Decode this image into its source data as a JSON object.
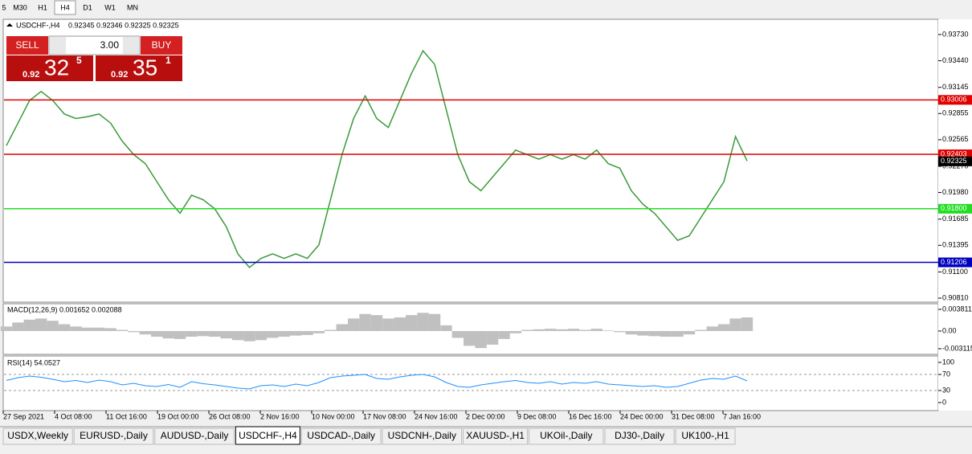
{
  "toolbar": {
    "timeframes": [
      "5",
      "M30",
      "H1",
      "H4",
      "D1",
      "W1",
      "MN"
    ],
    "active": 3
  },
  "chart": {
    "symbol": "USDCHF-,H4",
    "quote": "0.92345 0.92346 0.92325 0.92325",
    "trade": {
      "sell": "SELL",
      "buy": "BUY",
      "volume": "3.00",
      "bid": {
        "big": "0.92",
        "pips": "32",
        "frac": "5"
      },
      "ask": {
        "big": "0.92",
        "pips": "35",
        "frac": "1"
      }
    },
    "price_axis": [
      {
        "value": 0.9373,
        "label": "0.93730"
      },
      {
        "value": 0.9344,
        "label": "0.93440"
      },
      {
        "value": 0.93145,
        "label": "0.93145"
      },
      {
        "value": 0.92855,
        "label": "0.92855"
      },
      {
        "value": 0.92565,
        "label": "0.92565"
      },
      {
        "value": 0.9227,
        "label": "0.92270"
      },
      {
        "value": 0.9198,
        "label": "0.91980"
      },
      {
        "value": 0.91685,
        "label": "0.91685"
      },
      {
        "value": 0.91395,
        "label": "0.91395"
      },
      {
        "value": 0.911,
        "label": "0.91100"
      },
      {
        "value": 0.9081,
        "label": "0.90810"
      }
    ],
    "levels": [
      {
        "value": 0.93006,
        "label": "0.93006",
        "color": "#e00000"
      },
      {
        "value": 0.92403,
        "label": "0.92403",
        "color": "#e00000"
      },
      {
        "value": 0.918,
        "label": "0.91800",
        "color": "#22dd22"
      },
      {
        "value": 0.91206,
        "label": "0.91206",
        "color": "#0000c0"
      }
    ],
    "current": {
      "value": 0.92325,
      "label": "0.92325"
    },
    "price_color": "#3a9a3a",
    "price": [
      0.925,
      0.9275,
      0.93,
      0.931,
      0.93,
      0.9285,
      0.928,
      0.9282,
      0.9285,
      0.9275,
      0.9255,
      0.924,
      0.923,
      0.921,
      0.919,
      0.9175,
      0.9195,
      0.919,
      0.918,
      0.916,
      0.913,
      0.9115,
      0.9125,
      0.913,
      0.9125,
      0.913,
      0.9125,
      0.914,
      0.919,
      0.924,
      0.928,
      0.9305,
      0.928,
      0.927,
      0.93,
      0.933,
      0.9355,
      0.934,
      0.929,
      0.924,
      0.921,
      0.92,
      0.9215,
      0.923,
      0.9245,
      0.924,
      0.9235,
      0.924,
      0.9235,
      0.924,
      0.9235,
      0.9245,
      0.923,
      0.9225,
      0.92,
      0.9185,
      0.9175,
      0.916,
      0.9145,
      0.915,
      0.917,
      0.919,
      0.921,
      0.926,
      0.9233
    ],
    "dates": [
      "27 Sep 2021",
      "4 Oct 08:00",
      "11 Oct 16:00",
      "19 Oct 00:00",
      "26 Oct 08:00",
      "2 Nov 16:00",
      "10 Nov 00:00",
      "17 Nov 08:00",
      "24 Nov 16:00",
      "2 Dec 00:00",
      "9 Dec 08:00",
      "16 Dec 16:00",
      "24 Dec 00:00",
      "31 Dec 08:00",
      "7 Jan 16:00"
    ]
  },
  "macd": {
    "title": "MACD(12,26,9) 0.001652 0.002088",
    "ticks": [
      {
        "value": 0.003811,
        "label": "0.003811"
      },
      {
        "value": 0,
        "label": "0.00"
      },
      {
        "value": -0.003115,
        "label": "-0.003115"
      }
    ],
    "values": [
      0.0008,
      0.0015,
      0.002,
      0.0022,
      0.0018,
      0.0012,
      0.0008,
      0.0006,
      0.0006,
      0.0005,
      0.0002,
      -0.0002,
      -0.0006,
      -0.001,
      -0.0013,
      -0.0014,
      -0.001,
      -0.0009,
      -0.001,
      -0.0013,
      -0.0016,
      -0.0018,
      -0.0016,
      -0.0012,
      -0.001,
      -0.0008,
      -0.0007,
      -0.0004,
      0.0002,
      0.0012,
      0.0022,
      0.003,
      0.0028,
      0.0022,
      0.0024,
      0.0028,
      0.0032,
      0.003,
      0.001,
      -0.0012,
      -0.0026,
      -0.003,
      -0.0024,
      -0.0014,
      -0.0004,
      0.0002,
      0.0003,
      0.0004,
      0.0003,
      0.0004,
      0.0002,
      0.0004,
      0.0001,
      -0.0002,
      -0.0006,
      -0.0008,
      -0.0009,
      -0.001,
      -0.001,
      -0.0006,
      0.0002,
      0.0008,
      0.0012,
      0.0022,
      0.0024
    ]
  },
  "rsi": {
    "title": "RSI(14) 54.0527",
    "ticks": [
      100,
      70,
      30,
      0
    ],
    "levels": [
      70,
      30
    ],
    "values": [
      55,
      62,
      66,
      63,
      58,
      52,
      55,
      50,
      56,
      52,
      44,
      48,
      42,
      40,
      45,
      38,
      52,
      47,
      44,
      40,
      36,
      34,
      42,
      44,
      40,
      46,
      42,
      50,
      62,
      66,
      68,
      70,
      60,
      58,
      64,
      68,
      70,
      64,
      50,
      40,
      38,
      44,
      48,
      52,
      55,
      50,
      48,
      52,
      46,
      50,
      48,
      52,
      46,
      44,
      42,
      40,
      42,
      38,
      40,
      48,
      56,
      60,
      58,
      66,
      54
    ]
  },
  "tabs": [
    "USDX,Weekly",
    "EURUSD-,Daily",
    "AUDUSD-,Daily",
    "USDCHF-,H4",
    "USDCAD-,Daily",
    "USDCNH-,Daily",
    "XAUUSD-,H1",
    "UKOil-,Daily",
    "DJ30-,Daily",
    "UK100-,H1"
  ],
  "active_tab": 3
}
